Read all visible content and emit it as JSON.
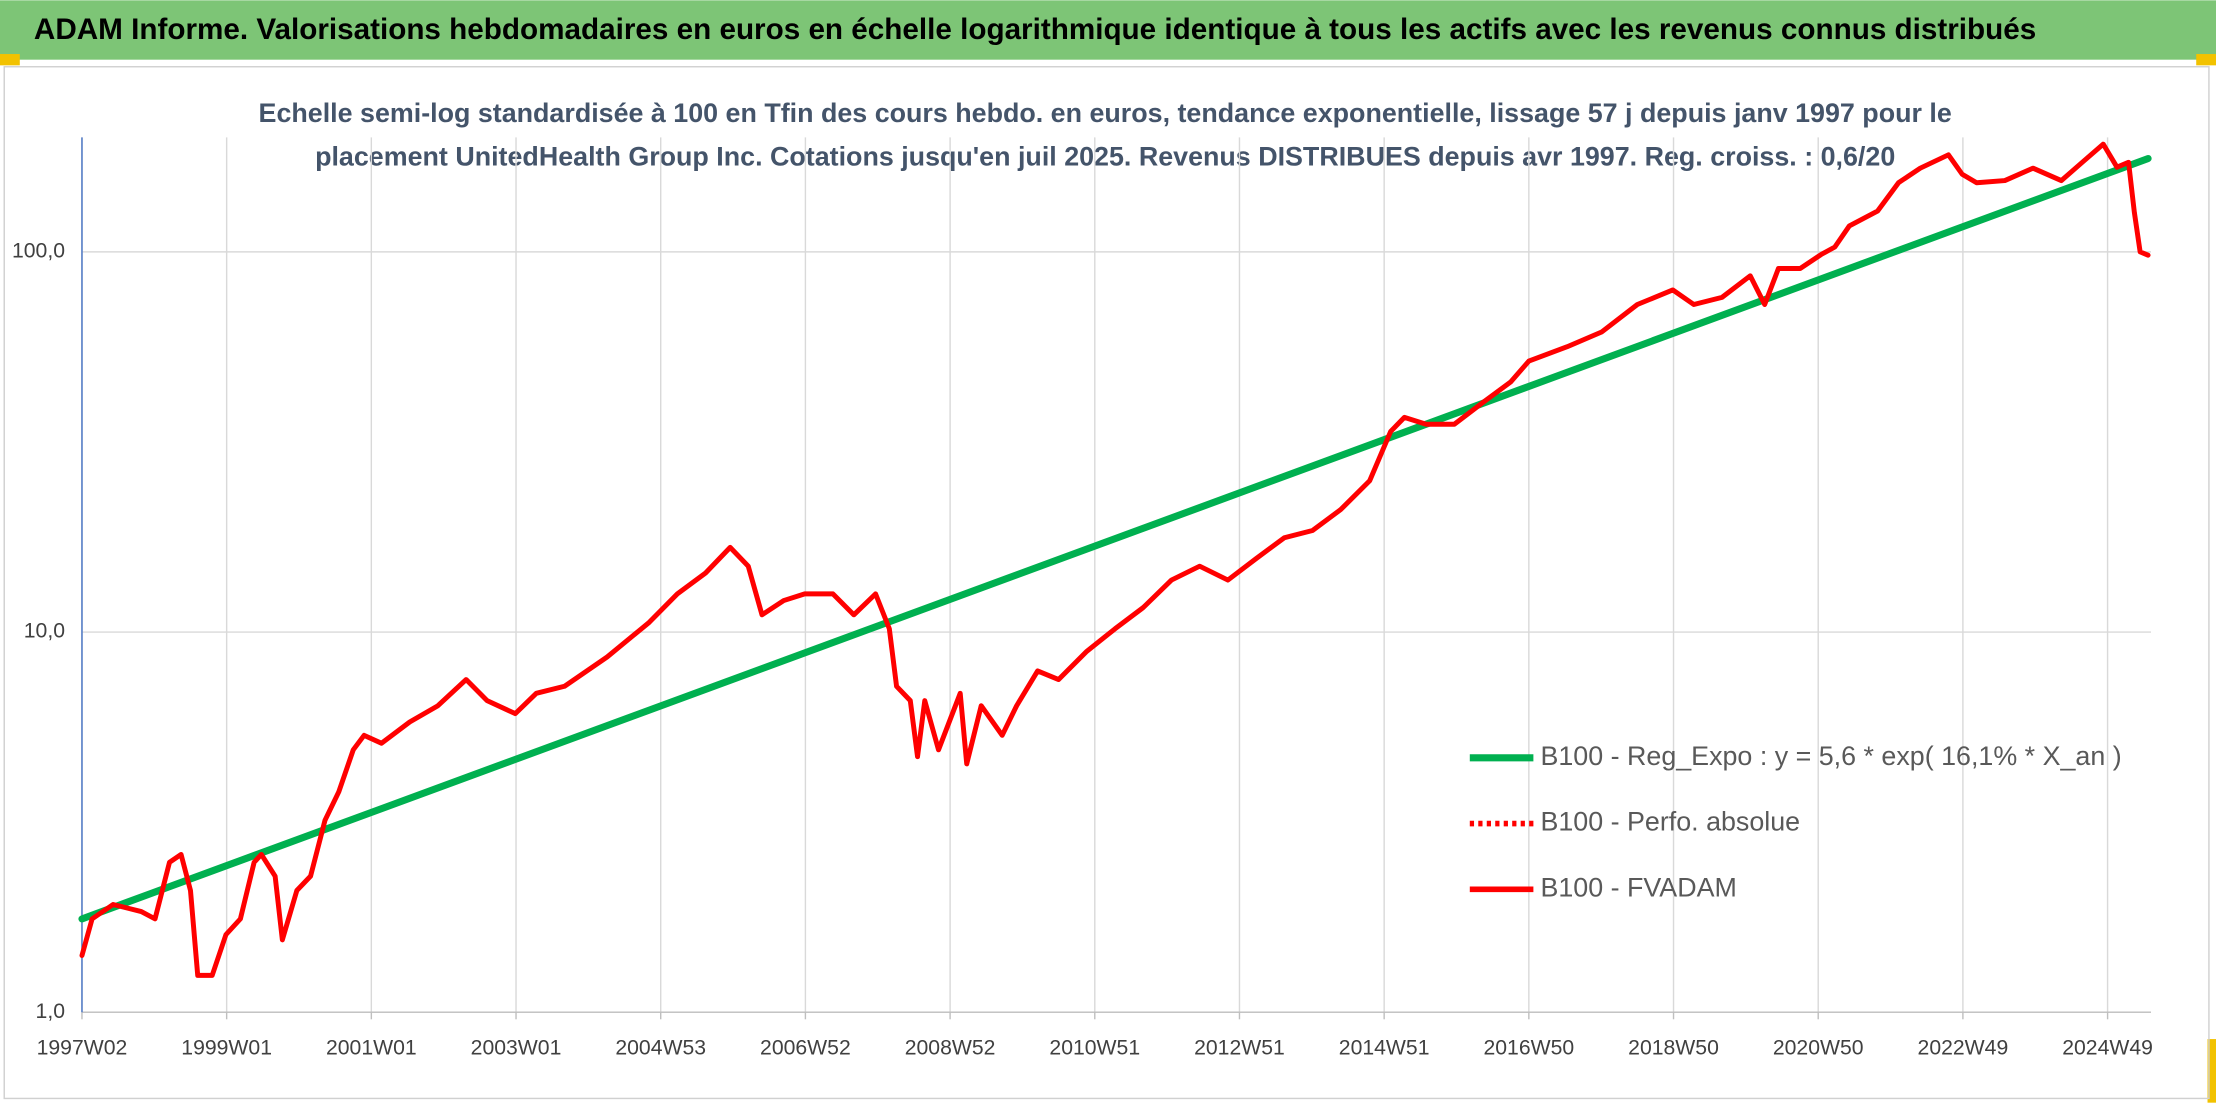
{
  "chart_data": {
    "type": "line",
    "title": "ADAM Informe. Valorisations hebdomadaires en euros en échelle logarithmique identique à tous les actifs avec les revenus connus distribués",
    "subtitle": [
      "Echelle semi-log standardisée à 100 en Tfin des cours hebdo. en euros, tendance exponentielle, lissage 57 j depuis janv 1997 pour le",
      "placement UnitedHealth Group Inc. Cotations jusqu'en juil 2025. Revenus DISTRIBUES depuis avr 1997. Reg. croiss. : 0,6/20"
    ],
    "yscale": "log",
    "ylim": [
      1,
      200
    ],
    "yticks": [
      {
        "value": 1,
        "label": "1,0"
      },
      {
        "value": 10,
        "label": "10,0"
      },
      {
        "value": 100,
        "label": "100,0"
      }
    ],
    "xlim": [
      1997.0,
      2025.6
    ],
    "xticks": [
      {
        "value": 1997.0,
        "label": "1997W02"
      },
      {
        "value": 1999.0,
        "label": "1999W01"
      },
      {
        "value": 2001.0,
        "label": "2001W01"
      },
      {
        "value": 2003.0,
        "label": "2003W01"
      },
      {
        "value": 2005.0,
        "label": "2004W53"
      },
      {
        "value": 2007.0,
        "label": "2006W52"
      },
      {
        "value": 2009.0,
        "label": "2008W52"
      },
      {
        "value": 2011.0,
        "label": "2010W51"
      },
      {
        "value": 2013.0,
        "label": "2012W51"
      },
      {
        "value": 2015.0,
        "label": "2014W51"
      },
      {
        "value": 2017.0,
        "label": "2016W50"
      },
      {
        "value": 2019.0,
        "label": "2018W50"
      },
      {
        "value": 2021.0,
        "label": "2020W50"
      },
      {
        "value": 2023.0,
        "label": "2022W49"
      },
      {
        "value": 2025.0,
        "label": "2024W49"
      }
    ],
    "grid": true,
    "legend": "right",
    "series": [
      {
        "name": "B100 - Reg_Expo : y = 5,6 * exp( 16,1% *  X_an )",
        "color": "#00b050",
        "x": [
          1997.0,
          2025.56
        ],
        "values": [
          1.76,
          176
        ]
      },
      {
        "name": "B100 - Perfo. absolue",
        "color": "#ff0000",
        "dash": "dotted",
        "x": [],
        "values": []
      },
      {
        "name": "B100 - FVADAM",
        "color": "#ff0000",
        "x": [
          1997.0,
          1997.14,
          1997.43,
          1997.82,
          1998.01,
          1998.21,
          1998.37,
          1998.5,
          1998.6,
          1998.8,
          1998.99,
          1999.19,
          1999.38,
          1999.48,
          1999.67,
          1999.77,
          1999.97,
          2000.16,
          2000.36,
          2000.55,
          2000.75,
          2000.9,
          2001.14,
          2001.53,
          2001.92,
          2002.31,
          2002.6,
          2002.99,
          2003.28,
          2003.67,
          2004.26,
          2004.84,
          2005.23,
          2005.62,
          2005.96,
          2006.21,
          2006.4,
          2006.7,
          2006.99,
          2007.38,
          2007.67,
          2007.97,
          2008.16,
          2008.26,
          2008.45,
          2008.55,
          2008.65,
          2008.84,
          2009.14,
          2009.23,
          2009.43,
          2009.72,
          2009.92,
          2010.21,
          2010.5,
          2010.89,
          2011.28,
          2011.67,
          2012.06,
          2012.45,
          2012.84,
          2013.23,
          2013.62,
          2014.01,
          2014.4,
          2014.8,
          2015.09,
          2015.28,
          2015.58,
          2015.97,
          2016.36,
          2016.75,
          2017.0,
          2017.53,
          2018.01,
          2018.5,
          2018.99,
          2019.28,
          2019.67,
          2020.06,
          2020.26,
          2020.45,
          2020.75,
          2021.04,
          2021.23,
          2021.43,
          2021.82,
          2022.11,
          2022.41,
          2022.8,
          2022.99,
          2023.19,
          2023.58,
          2023.97,
          2024.36,
          2024.65,
          2024.94,
          2025.13,
          2025.29,
          2025.37,
          2025.45,
          2025.56
        ],
        "values": [
          1.41,
          1.76,
          1.92,
          1.84,
          1.76,
          2.48,
          2.6,
          2.09,
          1.25,
          1.25,
          1.6,
          1.76,
          2.48,
          2.6,
          2.28,
          1.55,
          2.09,
          2.28,
          3.2,
          3.8,
          4.9,
          5.35,
          5.1,
          5.8,
          6.4,
          7.5,
          6.6,
          6.1,
          6.9,
          7.2,
          8.6,
          10.6,
          12.6,
          14.3,
          16.7,
          14.9,
          11.1,
          12.1,
          12.6,
          12.6,
          11.1,
          12.6,
          10.2,
          7.2,
          6.6,
          4.7,
          6.6,
          4.9,
          6.9,
          4.5,
          6.4,
          5.35,
          6.4,
          7.9,
          7.5,
          8.9,
          10.2,
          11.6,
          13.7,
          14.9,
          13.7,
          15.6,
          17.7,
          18.5,
          21.0,
          25.0,
          33.7,
          36.7,
          35.2,
          35.2,
          40.1,
          45.5,
          51.6,
          56.3,
          61.6,
          72.7,
          79.4,
          72.7,
          75.9,
          86.5,
          72.7,
          90.4,
          90.4,
          98.4,
          103,
          117,
          128,
          152,
          166,
          180,
          160,
          152,
          154,
          166,
          154,
          172,
          192,
          167,
          172,
          127,
          100,
          98
        ]
      }
    ]
  }
}
